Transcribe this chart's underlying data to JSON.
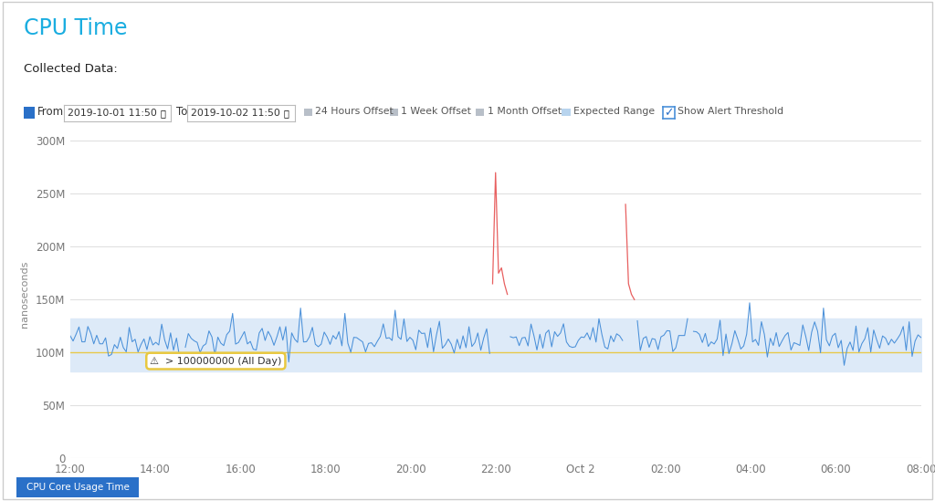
{
  "title": "CPU Time",
  "collected_data_label": "Collected Data:",
  "from_date": "2019-10-01 11:50",
  "to_date": "2019-10-02 11:50",
  "ylabel": "nanoseconds",
  "xlabel_bottom": "CPU Core Usage Time",
  "yticks": [
    0,
    50000000,
    100000000,
    150000000,
    200000000,
    250000000,
    300000000
  ],
  "ytick_labels": [
    "0",
    "50M",
    "100M",
    "150M",
    "200M",
    "250M",
    "300M"
  ],
  "xtick_labels": [
    "12:00",
    "14:00",
    "16:00",
    "18:00",
    "20:00",
    "22:00",
    "Oct 2",
    "02:00",
    "04:00",
    "06:00",
    "08:00"
  ],
  "alert_threshold": 100000000,
  "alert_label": "> 100000000 (All Day)",
  "expected_range_upper": 132000000,
  "expected_range_lower": 82000000,
  "title_color": "#1aade0",
  "line_color_normal": "#4a90d9",
  "line_color_alert": "#e86060",
  "expected_range_color": "#ddeaf8",
  "alert_line_color": "#e8c840",
  "background_color": "#ffffff",
  "seed": 42,
  "n_points": 289,
  "base_value": 112000000,
  "noise_scale": 8000000,
  "figsize": [
    10.24,
    5.49
  ],
  "dpi": 100
}
